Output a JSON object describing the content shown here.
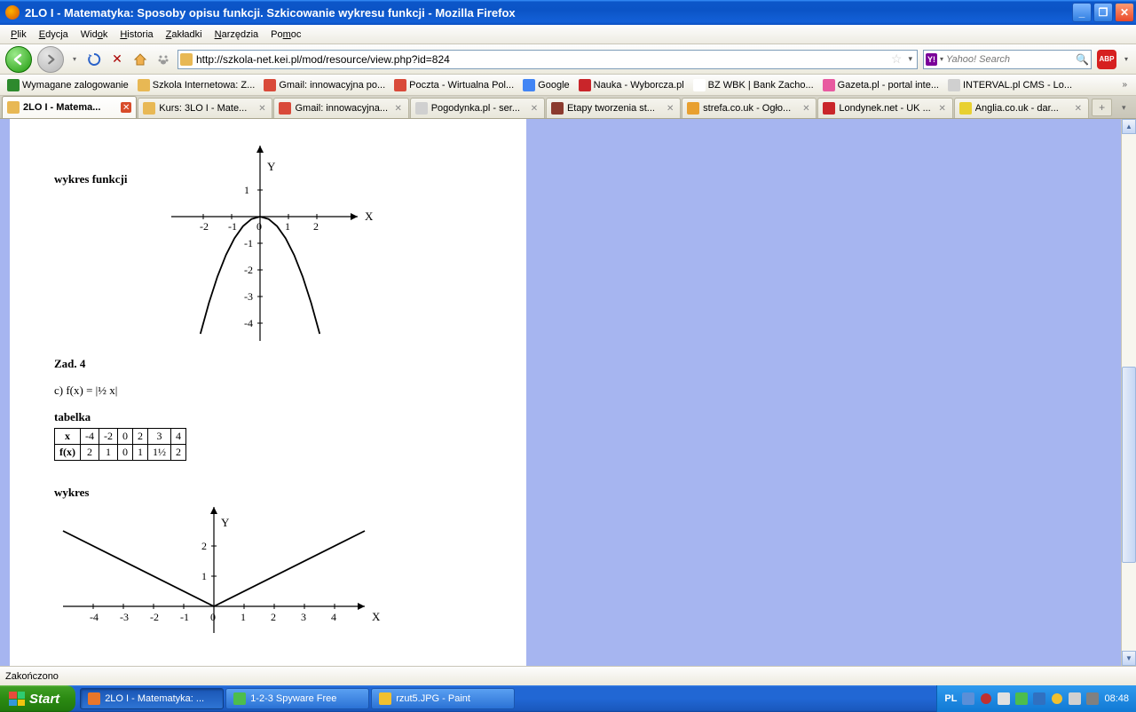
{
  "window": {
    "title": "2LO I - Matematyka: Sposoby opisu funkcji. Szkicowanie wykresu funkcji - Mozilla Firefox"
  },
  "menu": [
    "Plik",
    "Edycja",
    "Widok",
    "Historia",
    "Zakładki",
    "Narzędzia",
    "Pomoc"
  ],
  "menu_underline_idx": [
    0,
    0,
    3,
    0,
    0,
    0,
    2
  ],
  "nav": {
    "url": "http://szkola-net.kei.pl/mod/resource/view.php?id=824",
    "search_engine": "Y!",
    "search_placeholder": "Yahoo! Search",
    "abp": "ABP"
  },
  "bookmarks": [
    {
      "label": "Wymagane zalogowanie",
      "color": "#2d8a2d"
    },
    {
      "label": "Szkola Internetowa: Z...",
      "color": "#e8b854"
    },
    {
      "label": "Gmail: innowacyjna po...",
      "color": "#d94a3a"
    },
    {
      "label": "Poczta - Wirtualna Pol...",
      "color": "#d94a3a"
    },
    {
      "label": "Google",
      "color": "#4285f4"
    },
    {
      "label": "Nauka - Wyborcza.pl",
      "color": "#c9252a"
    },
    {
      "label": "BZ WBK | Bank Zacho...",
      "color": "#ffffff"
    },
    {
      "label": "Gazeta.pl - portal inte...",
      "color": "#e85aa0"
    },
    {
      "label": "INTERVAL.pl CMS - Lo...",
      "color": "#d0d0d0"
    }
  ],
  "tabs": [
    {
      "label": "2LO I - Matema...",
      "color": "#e8b854",
      "active": true
    },
    {
      "label": "Kurs: 3LO I - Mate...",
      "color": "#e8b854",
      "active": false
    },
    {
      "label": "Gmail: innowacyjna...",
      "color": "#d94a3a",
      "active": false
    },
    {
      "label": "Pogodynka.pl - ser...",
      "color": "#d0d0d0",
      "active": false
    },
    {
      "label": "Etapy tworzenia st...",
      "color": "#8b3a2e",
      "active": false
    },
    {
      "label": "strefa.co.uk - Ogło...",
      "color": "#e8a030",
      "active": false
    },
    {
      "label": "Londynek.net - UK ...",
      "color": "#c9252a",
      "active": false
    },
    {
      "label": "Anglia.co.uk - dar...",
      "color": "#e8d030",
      "active": false
    }
  ],
  "document": {
    "label_wykres_funkcji": "wykres funkcji",
    "label_zad": "Zad. 4",
    "label_c": "c)   f(x) = |½ x|",
    "label_tabelka": "tabelka",
    "label_wykres": "wykres",
    "chart1": {
      "type": "line",
      "function": "y = -x^2",
      "x_ticks": [
        -2,
        -1,
        0,
        1,
        2
      ],
      "y_ticks": [
        1,
        -1,
        -2,
        -3,
        -4
      ],
      "x_label": "X",
      "y_label": "Y",
      "points": [
        [
          -2.1,
          -4.4
        ],
        [
          -1.8,
          -3.24
        ],
        [
          -1.5,
          -2.25
        ],
        [
          -1.2,
          -1.44
        ],
        [
          -0.9,
          -0.81
        ],
        [
          -0.6,
          -0.36
        ],
        [
          -0.3,
          -0.09
        ],
        [
          0,
          0
        ],
        [
          0.3,
          -0.09
        ],
        [
          0.6,
          -0.36
        ],
        [
          0.9,
          -0.81
        ],
        [
          1.2,
          -1.44
        ],
        [
          1.5,
          -2.25
        ],
        [
          1.8,
          -3.24
        ],
        [
          2.1,
          -4.4
        ]
      ],
      "axis_color": "#000000",
      "line_color": "#000000",
      "line_width": 1.8
    },
    "table": {
      "header_x": "x",
      "header_fx": "f(x)",
      "x_values": [
        "-4",
        "-2",
        "0",
        "2",
        "3",
        "4"
      ],
      "fx_values": [
        "2",
        "1",
        "0",
        "1",
        "1½",
        "2"
      ]
    },
    "chart2": {
      "type": "line",
      "function": "y = |0.5x|",
      "x_ticks": [
        -4,
        -3,
        -2,
        -1,
        0,
        1,
        2,
        3,
        4
      ],
      "y_ticks": [
        1,
        2
      ],
      "x_label": "X",
      "y_label": "Y",
      "points": [
        [
          -5,
          2.5
        ],
        [
          0,
          0
        ],
        [
          5,
          2.5
        ]
      ],
      "axis_color": "#000000",
      "line_color": "#000000",
      "line_width": 1.8
    }
  },
  "status": "Zakończono",
  "taskbar": {
    "start": "Start",
    "items": [
      {
        "label": "2LO I - Matematyka: ...",
        "color": "#e8762a",
        "active": true
      },
      {
        "label": "1-2-3 Spyware Free",
        "color": "#4dbd4d",
        "active": false
      },
      {
        "label": "rzut5.JPG - Paint",
        "color": "#f0c030",
        "active": false
      }
    ],
    "lang": "PL",
    "clock": "08:48"
  },
  "scrollbar": {
    "thumb_top_pct": 45,
    "thumb_height_pct": 38
  }
}
